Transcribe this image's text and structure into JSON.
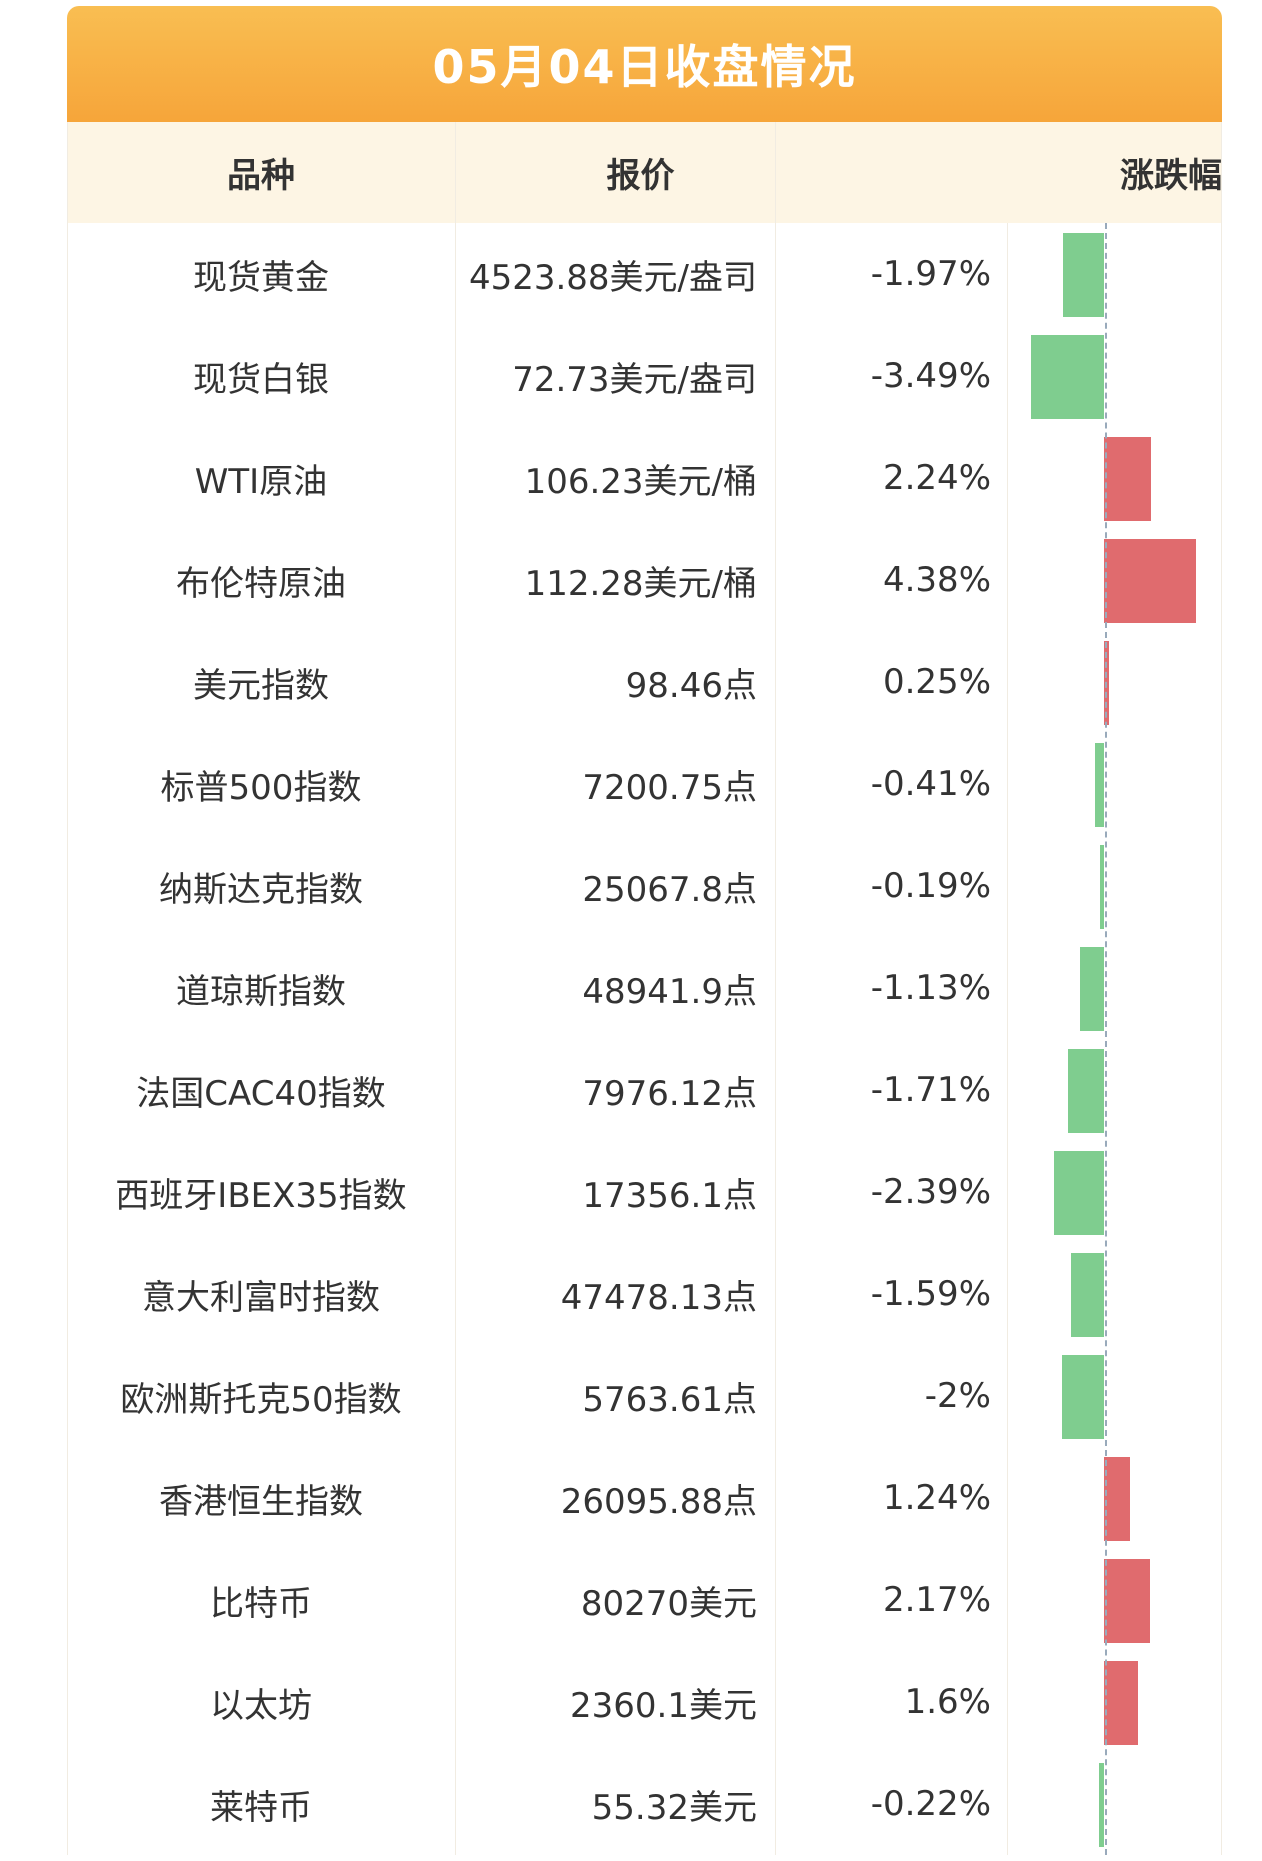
{
  "title": "05月04日收盘情况",
  "columns": [
    "品种",
    "报价",
    "涨跌幅"
  ],
  "rows": [
    {
      "name": "现货黄金",
      "price": "4523.88美元/盎司",
      "change": -1.97,
      "change_label": "-1.97%"
    },
    {
      "name": "现货白银",
      "price": "72.73美元/盎司",
      "change": -3.49,
      "change_label": "-3.49%"
    },
    {
      "name": "WTI原油",
      "price": "106.23美元/桶",
      "change": 2.24,
      "change_label": "2.24%"
    },
    {
      "name": "布伦特原油",
      "price": "112.28美元/桶",
      "change": 4.38,
      "change_label": "4.38%"
    },
    {
      "name": "美元指数",
      "price": "98.46点",
      "change": 0.25,
      "change_label": "0.25%"
    },
    {
      "name": "标普500指数",
      "price": "7200.75点",
      "change": -0.41,
      "change_label": "-0.41%"
    },
    {
      "name": "纳斯达克指数",
      "price": "25067.8点",
      "change": -0.19,
      "change_label": "-0.19%"
    },
    {
      "name": "道琼斯指数",
      "price": "48941.9点",
      "change": -1.13,
      "change_label": "-1.13%"
    },
    {
      "name": "法国CAC40指数",
      "price": "7976.12点",
      "change": -1.71,
      "change_label": "-1.71%"
    },
    {
      "name": "西班牙IBEX35指数",
      "price": "17356.1点",
      "change": -2.39,
      "change_label": "-2.39%"
    },
    {
      "name": "意大利富时指数",
      "price": "47478.13点",
      "change": -1.59,
      "change_label": "-1.59%"
    },
    {
      "name": "欧洲斯托克50指数",
      "price": "5763.61点",
      "change": -2,
      "change_label": "-2%"
    },
    {
      "name": "香港恒生指数",
      "price": "26095.88点",
      "change": 1.24,
      "change_label": "1.24%"
    },
    {
      "name": "比特币",
      "price": "80270美元",
      "change": 2.17,
      "change_label": "2.17%"
    },
    {
      "name": "以太坊",
      "price": "2360.1美元",
      "change": 1.6,
      "change_label": "1.6%"
    },
    {
      "name": "莱特币",
      "price": "55.32美元",
      "change": -0.22,
      "change_label": "-0.22%"
    }
  ],
  "colors": {
    "up": "#e06b6e",
    "down": "#7fcd8f"
  }
}
